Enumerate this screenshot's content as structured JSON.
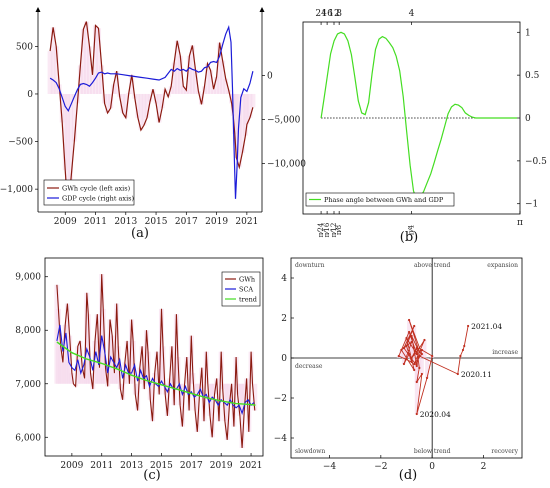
{
  "chart_data": [
    {
      "panel": "a",
      "type": "line",
      "caption": "(a)",
      "xaxis": {
        "ticks": [
          2009,
          2011,
          2013,
          2015,
          2017,
          2019,
          2021
        ],
        "range": [
          2007.2,
          2022.0
        ]
      },
      "yaxis_left": {
        "ticks": [
          500,
          0,
          -500,
          -1000
        ],
        "tick_labels": [
          "500",
          "0",
          "−500",
          "−1,000"
        ],
        "range": [
          -1240,
          840
        ]
      },
      "yaxis_right": {
        "ticks": [
          0,
          -5000,
          -10000
        ],
        "tick_labels": [
          "0",
          "−5,000",
          "−10,000"
        ],
        "range": [
          -15500,
          7000
        ]
      },
      "series": [
        {
          "name": "GWh cycle (left axis)",
          "axis": "left",
          "color": "#8b1a10",
          "x": [
            2008.0,
            2008.2,
            2008.4,
            2008.6,
            2008.8,
            2009.0,
            2009.15,
            2009.35,
            2009.6,
            2009.8,
            2010.0,
            2010.2,
            2010.4,
            2010.6,
            2010.8,
            2011.0,
            2011.2,
            2011.4,
            2011.6,
            2011.8,
            2012.0,
            2012.2,
            2012.4,
            2012.6,
            2012.8,
            2013.0,
            2013.2,
            2013.4,
            2013.6,
            2013.8,
            2014.0,
            2014.2,
            2014.4,
            2014.6,
            2014.8,
            2015.0,
            2015.2,
            2015.4,
            2015.6,
            2015.8,
            2016.0,
            2016.2,
            2016.4,
            2016.6,
            2016.8,
            2017.0,
            2017.2,
            2017.4,
            2017.6,
            2017.8,
            2018.0,
            2018.2,
            2018.4,
            2018.6,
            2018.8,
            2019.0,
            2019.2,
            2019.4,
            2019.6,
            2019.8,
            2020.0,
            2020.1,
            2020.2,
            2020.3,
            2020.5,
            2020.7,
            2020.9,
            2021.0,
            2021.2,
            2021.4
          ],
          "values": [
            450,
            700,
            500,
            100,
            -300,
            -800,
            -1150,
            -950,
            -500,
            -100,
            300,
            680,
            760,
            500,
            200,
            720,
            690,
            300,
            -100,
            -200,
            -150,
            100,
            240,
            -30,
            -200,
            -250,
            10,
            200,
            -50,
            -250,
            -380,
            -330,
            -250,
            -80,
            50,
            -100,
            -300,
            -150,
            50,
            -30,
            80,
            330,
            560,
            400,
            80,
            40,
            400,
            510,
            260,
            30,
            -110,
            80,
            320,
            250,
            50,
            180,
            540,
            350,
            160,
            40,
            -100,
            -230,
            -420,
            -670,
            -770,
            -620,
            -440,
            -320,
            -250,
            -140
          ]
        },
        {
          "name": "GDP cycle (right axis)",
          "axis": "right",
          "color": "#1c1cd8",
          "x": [
            2008.0,
            2008.2,
            2008.4,
            2008.6,
            2008.8,
            2009.0,
            2009.2,
            2009.4,
            2009.6,
            2009.8,
            2010.0,
            2010.2,
            2010.4,
            2010.6,
            2010.8,
            2011.0,
            2011.2,
            2011.4,
            2011.6,
            2011.8,
            2012.0,
            2012.4,
            2012.8,
            2013.2,
            2013.6,
            2014.0,
            2014.4,
            2014.8,
            2015.2,
            2015.6,
            2016.0,
            2016.2,
            2016.4,
            2016.6,
            2016.8,
            2017.0,
            2017.2,
            2017.4,
            2017.6,
            2017.8,
            2018.0,
            2018.2,
            2018.4,
            2018.6,
            2018.8,
            2019.0,
            2019.2,
            2019.4,
            2019.6,
            2019.8,
            2019.95,
            2020.05,
            2020.15,
            2020.25,
            2020.35,
            2020.45,
            2020.6,
            2020.8,
            2021.0,
            2021.2,
            2021.4
          ],
          "values": [
            -300,
            -500,
            -800,
            -1500,
            -2500,
            -3500,
            -4000,
            -3200,
            -2400,
            -1600,
            -1000,
            -900,
            -1000,
            -1200,
            -800,
            -300,
            300,
            400,
            200,
            300,
            200,
            200,
            100,
            0,
            -100,
            -200,
            -300,
            -400,
            -500,
            -200,
            700,
            500,
            800,
            600,
            700,
            500,
            900,
            700,
            600,
            400,
            500,
            900,
            1000,
            1500,
            1600,
            1500,
            2200,
            3500,
            4700,
            5500,
            3800,
            -1500,
            -8000,
            -14000,
            -10500,
            -6000,
            -2500,
            -1500,
            -1800,
            -900,
            500
          ]
        }
      ]
    },
    {
      "panel": "b",
      "type": "line",
      "caption": "(b)",
      "xaxis": {
        "range": [
          0,
          3.1416
        ],
        "bottom_ticks": [
          0.2618,
          0.3491,
          0.4488,
          0.5236,
          0.7854,
          3.1416
        ],
        "bottom_tick_labels": [
          "π⁄24",
          "π⁄16",
          "π⁄12",
          "π⁄8",
          "π⁄4",
          "π"
        ],
        "top_tick_labels": [
          "24",
          "16",
          "12",
          "8",
          "4"
        ]
      },
      "yaxis": {
        "ticks": [
          1,
          0.5,
          0,
          -0.5,
          -1
        ],
        "tick_labels": [
          "1",
          "0.5",
          "0",
          "−0.5",
          "−1"
        ],
        "range": [
          -1.12,
          1.12
        ]
      },
      "reference_line": 0,
      "series": [
        {
          "name": "Phase angle between GWh and GDP",
          "color": "#44dd22",
          "x": [
            0.262,
            0.3,
            0.35,
            0.4,
            0.45,
            0.5,
            0.55,
            0.6,
            0.65,
            0.7,
            0.75,
            0.8,
            0.85,
            0.9,
            0.95,
            1.0,
            1.05,
            1.1,
            1.15,
            1.2,
            1.25,
            1.3,
            1.35,
            1.4,
            1.45,
            1.5,
            1.55,
            1.6,
            1.65,
            1.7,
            1.75,
            1.8,
            1.85,
            1.9,
            1.95,
            2.0,
            2.05,
            2.1,
            2.15,
            2.2,
            2.25,
            2.3,
            2.35,
            2.4,
            2.45,
            2.5,
            2.55,
            2.6,
            2.65,
            2.7,
            2.75,
            2.8,
            2.85,
            2.9,
            2.95,
            3.0,
            3.05,
            3.1
          ],
          "values": [
            0.0,
            0.2,
            0.48,
            0.75,
            0.9,
            0.98,
            1.0,
            0.98,
            0.9,
            0.74,
            0.48,
            0.2,
            0.06,
            0.04,
            0.18,
            0.52,
            0.8,
            0.92,
            0.95,
            0.93,
            0.88,
            0.82,
            0.72,
            0.55,
            0.25,
            -0.15,
            -0.55,
            -0.85,
            -0.97,
            -0.93,
            -0.85,
            -0.75,
            -0.65,
            -0.52,
            -0.38,
            -0.25,
            -0.1,
            0.05,
            0.13,
            0.16,
            0.15,
            0.12,
            0.06,
            0.03,
            0.01,
            0.0,
            0.0,
            0.0,
            0.0,
            0.0,
            0.0,
            0.0,
            0.0,
            0.0,
            0.0,
            0.0,
            0.0,
            0.0
          ]
        }
      ]
    },
    {
      "panel": "c",
      "type": "line",
      "caption": "(c)",
      "xaxis": {
        "ticks": [
          2009,
          2011,
          2013,
          2015,
          2017,
          2019,
          2021
        ],
        "range": [
          2007.2,
          2021.8
        ]
      },
      "yaxis": {
        "ticks": [
          9000,
          8000,
          7000,
          6000
        ],
        "tick_labels": [
          "9,000",
          "8,000",
          "7,000",
          "6,000"
        ],
        "range": [
          5650,
          9350
        ]
      },
      "series": [
        {
          "name": "GWh",
          "color": "#8b1a10",
          "x": [
            2008.0,
            2008.1,
            2008.25,
            2008.4,
            2008.55,
            2008.7,
            2008.85,
            2009.0,
            2009.1,
            2009.25,
            2009.4,
            2009.55,
            2009.7,
            2009.85,
            2010.0,
            2010.1,
            2010.25,
            2010.4,
            2010.55,
            2010.7,
            2010.85,
            2011.0,
            2011.1,
            2011.25,
            2011.4,
            2011.55,
            2011.7,
            2011.85,
            2012.0,
            2012.1,
            2012.25,
            2012.4,
            2012.55,
            2012.7,
            2012.85,
            2013.0,
            2013.1,
            2013.25,
            2013.4,
            2013.55,
            2013.7,
            2013.85,
            2014.0,
            2014.1,
            2014.25,
            2014.4,
            2014.55,
            2014.7,
            2014.85,
            2015.0,
            2015.1,
            2015.25,
            2015.4,
            2015.55,
            2015.7,
            2015.85,
            2016.0,
            2016.1,
            2016.25,
            2016.4,
            2016.55,
            2016.7,
            2016.85,
            2017.0,
            2017.1,
            2017.25,
            2017.4,
            2017.55,
            2017.7,
            2017.85,
            2018.0,
            2018.1,
            2018.25,
            2018.4,
            2018.55,
            2018.7,
            2018.85,
            2019.0,
            2019.1,
            2019.25,
            2019.4,
            2019.55,
            2019.7,
            2019.85,
            2020.0,
            2020.1,
            2020.25,
            2020.4,
            2020.55,
            2020.7,
            2020.85,
            2021.0,
            2021.1,
            2021.25
          ],
          "values": [
            8850,
            8400,
            7700,
            7400,
            8100,
            8500,
            7900,
            7200,
            7000,
            6950,
            7700,
            7800,
            7300,
            7100,
            8700,
            8300,
            7200,
            6900,
            7800,
            8300,
            7300,
            9050,
            8400,
            7300,
            6950,
            8200,
            7900,
            7200,
            8500,
            7700,
            6900,
            6700,
            7400,
            7800,
            7000,
            8200,
            7800,
            6800,
            6500,
            7300,
            7700,
            6900,
            8000,
            7600,
            6700,
            6300,
            7200,
            7600,
            6800,
            8400,
            7700,
            6800,
            6400,
            7100,
            7700,
            6600,
            8300,
            7500,
            6600,
            6200,
            7000,
            7500,
            6500,
            7900,
            7200,
            6500,
            6100,
            6800,
            7300,
            6300,
            7600,
            7000,
            6400,
            6000,
            6800,
            7100,
            6300,
            7600,
            6900,
            6300,
            5950,
            6600,
            7000,
            6200,
            7500,
            6800,
            6400,
            5800,
            6500,
            7100,
            6100,
            7600,
            7000,
            6500
          ]
        },
        {
          "name": "SCA",
          "color": "#1c1cd8",
          "x": [
            2008.0,
            2008.2,
            2008.4,
            2008.6,
            2008.8,
            2009.0,
            2009.2,
            2009.4,
            2009.6,
            2009.8,
            2010.0,
            2010.2,
            2010.4,
            2010.6,
            2010.8,
            2011.0,
            2011.2,
            2011.4,
            2011.6,
            2011.8,
            2012.0,
            2012.2,
            2012.4,
            2012.6,
            2012.8,
            2013.0,
            2013.2,
            2013.4,
            2013.6,
            2013.8,
            2014.0,
            2014.2,
            2014.4,
            2014.6,
            2014.8,
            2015.0,
            2015.2,
            2015.4,
            2015.6,
            2015.8,
            2016.0,
            2016.2,
            2016.4,
            2016.6,
            2016.8,
            2017.0,
            2017.2,
            2017.4,
            2017.6,
            2017.8,
            2018.0,
            2018.2,
            2018.4,
            2018.6,
            2018.8,
            2019.0,
            2019.2,
            2019.4,
            2019.6,
            2019.8,
            2020.0,
            2020.2,
            2020.4,
            2020.6,
            2020.8,
            2021.0,
            2021.2
          ],
          "values": [
            7800,
            8100,
            7600,
            7950,
            7400,
            7300,
            7250,
            7450,
            7200,
            7350,
            7650,
            7500,
            7250,
            7600,
            7350,
            7900,
            7600,
            7200,
            7500,
            7400,
            7300,
            7450,
            7100,
            7350,
            7200,
            7200,
            7350,
            7050,
            7250,
            7100,
            7150,
            6950,
            7100,
            7000,
            6950,
            7050,
            6950,
            6850,
            7000,
            6900,
            6900,
            7000,
            6800,
            6950,
            6800,
            6850,
            6750,
            6800,
            6900,
            6750,
            6800,
            6650,
            6750,
            6700,
            6600,
            6700,
            6650,
            6600,
            6700,
            6600,
            6550,
            6600,
            6450,
            6650,
            6700,
            6600,
            6650
          ]
        },
        {
          "name": "trend",
          "color": "#44dd22",
          "x": [
            2008.0,
            2009.0,
            2010.0,
            2011.0,
            2012.0,
            2013.0,
            2014.0,
            2015.0,
            2016.0,
            2017.0,
            2018.0,
            2019.0,
            2020.0,
            2021.0,
            2021.3
          ],
          "values": [
            7780,
            7580,
            7460,
            7380,
            7280,
            7160,
            7060,
            6980,
            6900,
            6820,
            6740,
            6680,
            6630,
            6610,
            6600
          ]
        }
      ]
    },
    {
      "panel": "d",
      "type": "scatter",
      "caption": "(d)",
      "xaxis": {
        "ticks": [
          -4,
          -2,
          0,
          2
        ],
        "tick_labels": [
          "−4",
          "−2",
          "0",
          "2"
        ],
        "range": [
          -5.5,
          3.5
        ]
      },
      "yaxis": {
        "ticks": [
          4,
          2,
          0,
          -2,
          -4
        ],
        "tick_labels": [
          "4",
          "2",
          "0",
          "−2",
          "−4"
        ],
        "range": [
          -5,
          5
        ]
      },
      "quadrant_labels": [
        "downturn",
        "above trend",
        "expansion",
        "decrease",
        "increase",
        "slowdown",
        "below trend",
        "recovery"
      ],
      "annotations": [
        {
          "text": "2021.04",
          "x": 1.4,
          "y": 1.6
        },
        {
          "text": "2020.11",
          "x": 1.0,
          "y": -0.8
        },
        {
          "text": "2020.04",
          "x": -0.6,
          "y": -2.8
        }
      ],
      "series": [
        {
          "name": "path",
          "color": "#c03020",
          "x": [
            -0.9,
            -1.1,
            -0.8,
            -1.2,
            -0.7,
            -1.0,
            -0.6,
            -0.9,
            -1.3,
            -0.8,
            -1.0,
            -0.7,
            -1.1,
            -0.6,
            -0.8,
            -0.5,
            -0.9,
            -0.4,
            -0.7,
            -0.3,
            -0.6,
            -0.8,
            -0.6,
            -0.5,
            -0.6,
            -0.4,
            -0.6,
            -0.2,
            0.0,
            -0.4,
            -0.55,
            -0.6,
            -0.5,
            1.0,
            1.1,
            1.2,
            1.25,
            1.4
          ],
          "values": [
            0.2,
            -0.3,
            0.8,
            0.4,
            -0.6,
            1.0,
            0.2,
            1.3,
            0.1,
            -0.2,
            0.6,
            1.6,
            0.5,
            -0.4,
            1.1,
            0.3,
            1.9,
            0.2,
            -0.3,
            0.9,
            0.3,
            0.0,
            0.5,
            -0.5,
            -1.2,
            -0.8,
            -2.8,
            -1.0,
            0.1,
            0.4,
            0.0,
            -0.3,
            0.1,
            -0.8,
            0.1,
            0.4,
            0.6,
            1.6
          ]
        }
      ]
    }
  ]
}
